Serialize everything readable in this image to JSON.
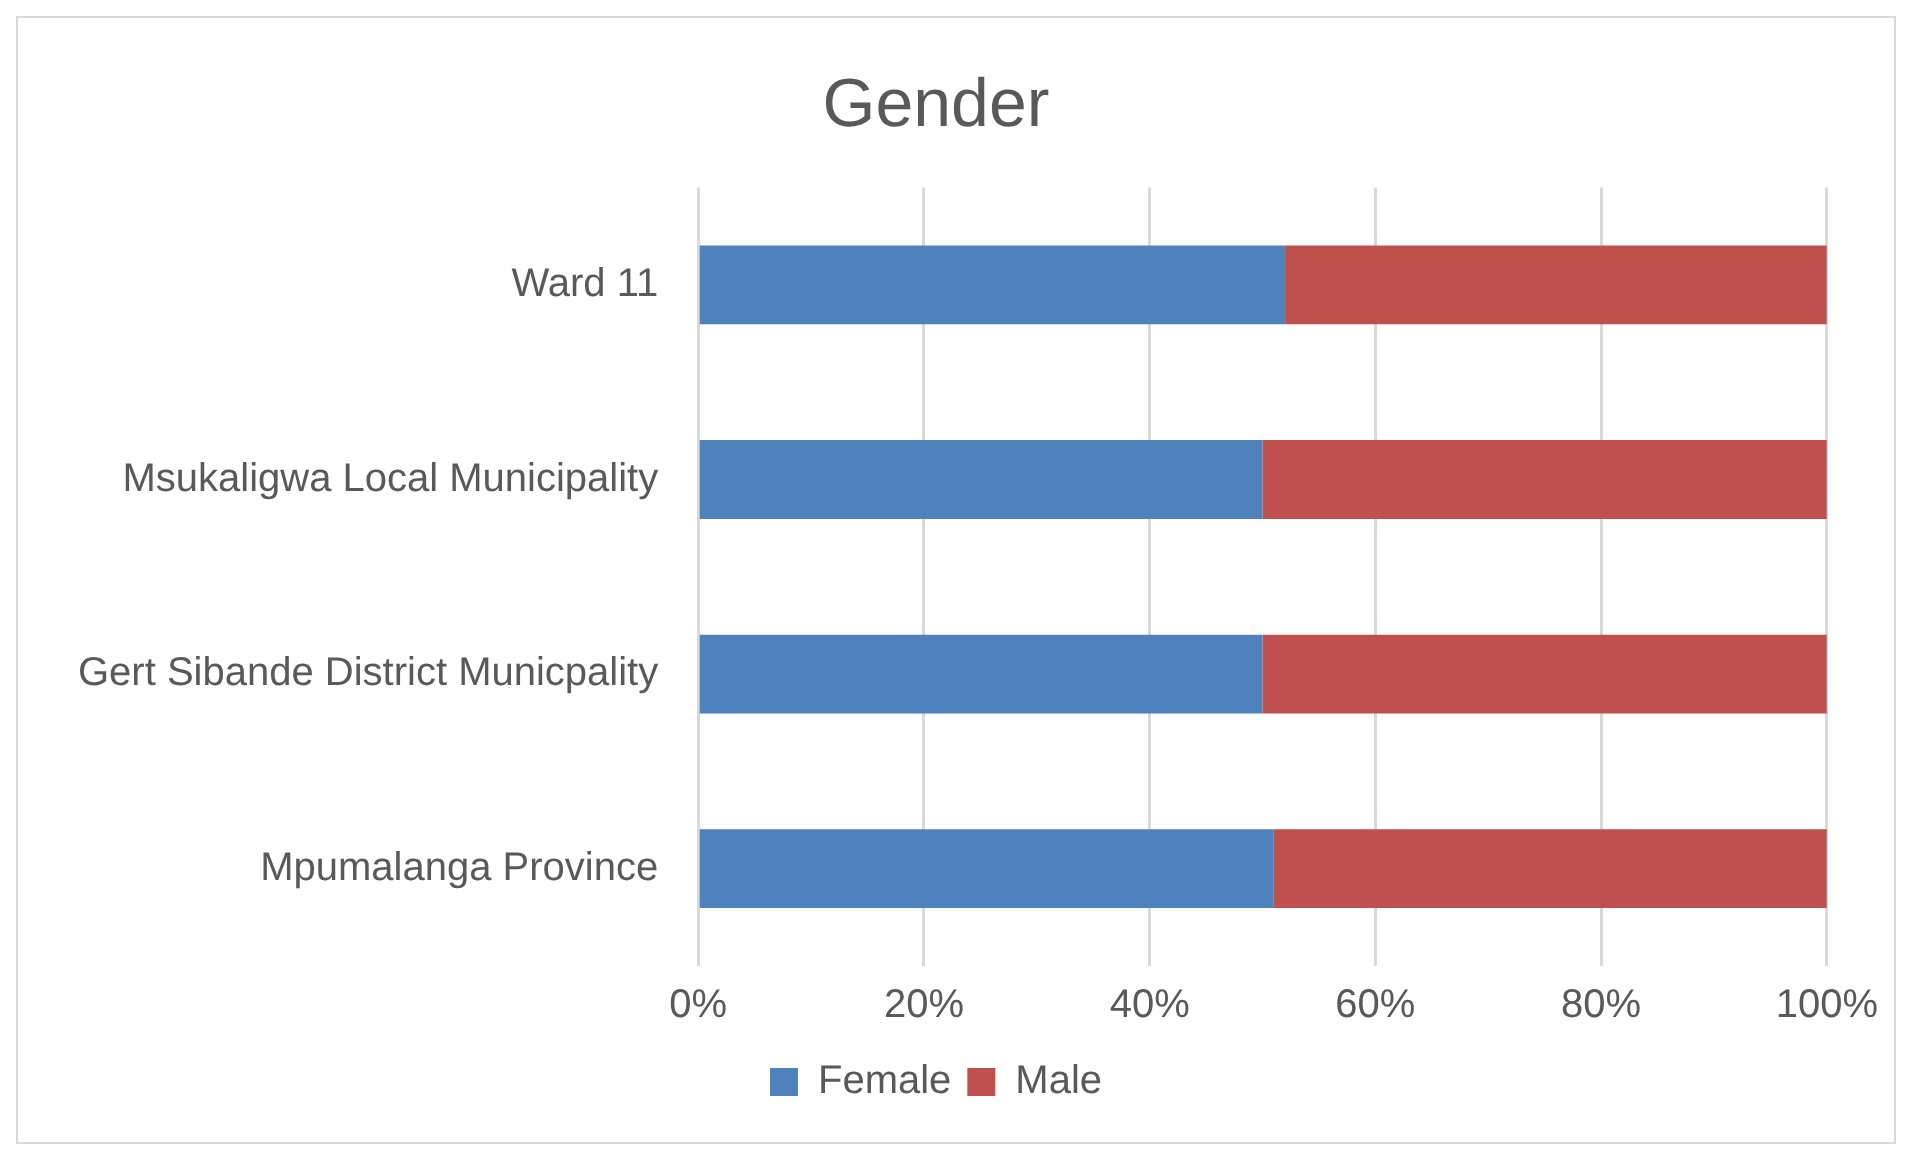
{
  "chart_data": {
    "type": "bar",
    "orientation": "horizontal",
    "stacked": true,
    "title": "Gender",
    "categories": [
      "Ward 11",
      "Msukaligwa Local Municipality",
      "Gert Sibande District Municpality",
      "Mpumalanga Province"
    ],
    "series": [
      {
        "name": "Female",
        "color": "#4f81bd",
        "values": [
          52,
          50,
          50,
          51
        ]
      },
      {
        "name": "Male",
        "color": "#c0504d",
        "values": [
          48,
          50,
          50,
          49
        ]
      }
    ],
    "xlim": [
      0,
      100
    ],
    "xticks": [
      {
        "value": 0,
        "label": "0%"
      },
      {
        "value": 20,
        "label": "20%"
      },
      {
        "value": 40,
        "label": "40%"
      },
      {
        "value": 60,
        "label": "60%"
      },
      {
        "value": 80,
        "label": "80%"
      },
      {
        "value": 100,
        "label": "100%"
      }
    ],
    "grid": "x",
    "legend": "bottom"
  }
}
